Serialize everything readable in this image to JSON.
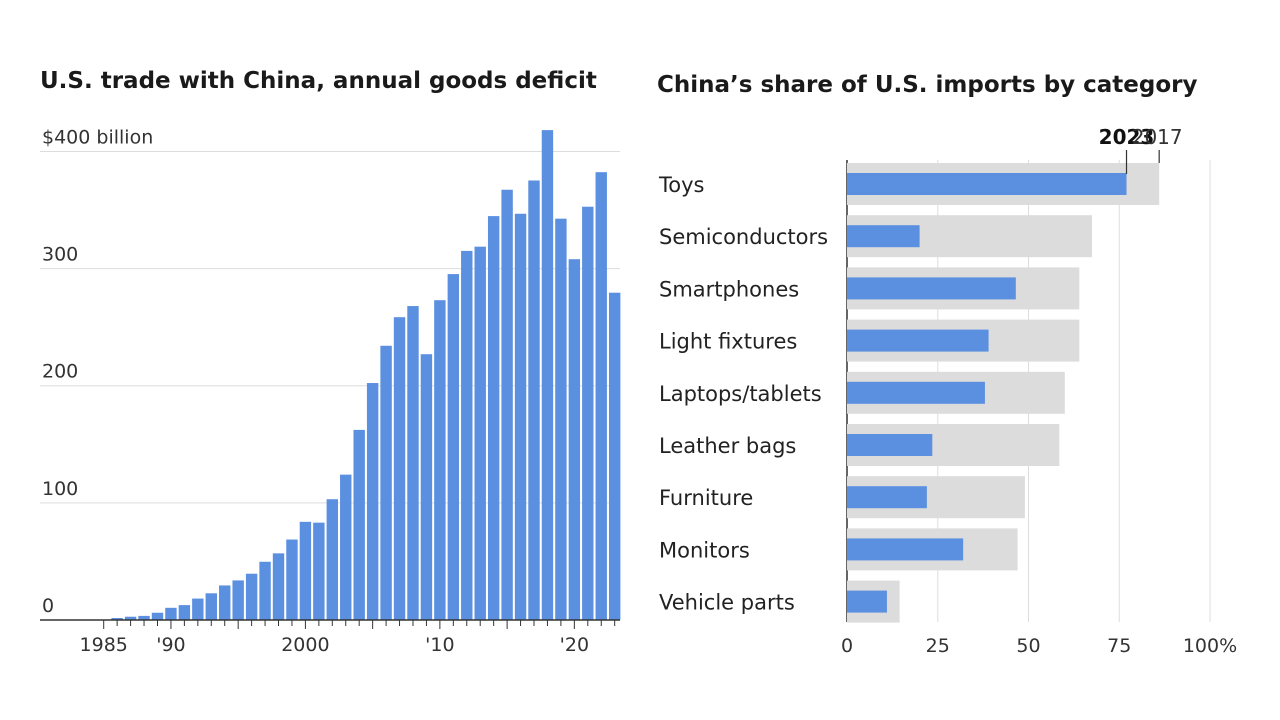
{
  "chart_data": [
    {
      "type": "bar",
      "title": "U.S. trade with China, annual goods deficit",
      "ylim": [
        0,
        420
      ],
      "y_ticks": [
        0,
        100,
        200,
        300,
        400
      ],
      "y_tick_labels": [
        "0",
        "100",
        "200",
        "300",
        "$400 billion"
      ],
      "x_tick_labels": [
        "1985",
        "'90",
        "2000",
        "'10",
        "'20"
      ],
      "x_tick_label_years": [
        1985,
        1990,
        2000,
        2010,
        2020
      ],
      "color": "#5b8fe0",
      "grid": true,
      "categories": [
        1985,
        1986,
        1987,
        1988,
        1989,
        1990,
        1991,
        1992,
        1993,
        1994,
        1995,
        1996,
        1997,
        1998,
        1999,
        2000,
        2001,
        2002,
        2003,
        2004,
        2005,
        2006,
        2007,
        2008,
        2009,
        2010,
        2011,
        2012,
        2013,
        2014,
        2015,
        2016,
        2017,
        2018,
        2019,
        2020,
        2021,
        2022,
        2023
      ],
      "values": [
        0,
        1.7,
        2.8,
        3.5,
        6.2,
        10.4,
        12.7,
        18.3,
        22.8,
        29.5,
        33.8,
        39.5,
        49.7,
        56.9,
        68.7,
        83.8,
        83.1,
        103.1,
        124.1,
        162.3,
        202.3,
        234.1,
        258.5,
        268.0,
        226.9,
        273.0,
        295.3,
        315.1,
        318.7,
        344.8,
        367.3,
        346.8,
        375.2,
        418.2,
        342.6,
        308.0,
        352.8,
        382.3,
        279.4
      ]
    },
    {
      "type": "bar",
      "orientation": "horizontal",
      "title": "China’s share of U.S. imports by category",
      "xlim": [
        0,
        100
      ],
      "x_ticks": [
        0,
        25,
        50,
        75,
        100
      ],
      "x_tick_labels": [
        "0",
        "25",
        "50",
        "75",
        "100%"
      ],
      "grid": true,
      "categories": [
        "Toys",
        "Semiconductors",
        "Smartphones",
        "Light fixtures",
        "Laptops/tablets",
        "Leather bags",
        "Furniture",
        "Monitors",
        "Vehicle parts"
      ],
      "series": [
        {
          "name": "2023",
          "color": "#5b8fe0",
          "values": [
            77,
            20,
            46.5,
            39,
            38,
            23.5,
            22,
            32,
            11
          ]
        },
        {
          "name": "2017",
          "color": "#dcdcdc",
          "values": [
            86,
            67.5,
            64,
            64,
            60,
            58.5,
            49,
            47,
            14.5
          ]
        }
      ]
    }
  ]
}
